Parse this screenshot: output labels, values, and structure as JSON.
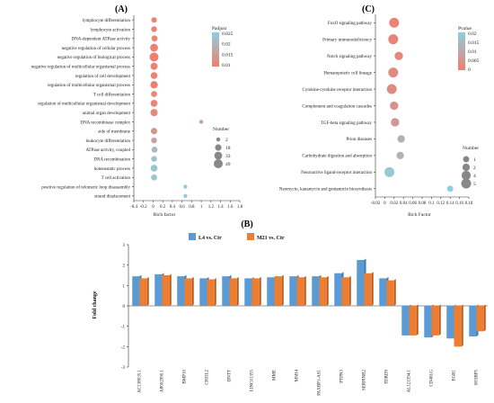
{
  "chart_data": [
    {
      "panel": "(A)",
      "type": "scatter",
      "xlabel": "Rich factor",
      "xticks": [
        "-0.4",
        "-0.2",
        "0",
        "0.2",
        "0.4",
        "0.6",
        "0.8",
        "1",
        "1.2",
        "1.4",
        "1.6",
        "1.8"
      ],
      "xlim": [
        -0.4,
        1.8
      ],
      "color_legend": {
        "title": "Padjust",
        "ticks": [
          "0.025",
          "0.02",
          "0.015",
          "0.01"
        ],
        "high": "#8ecfe0",
        "low": "#ef7f6f",
        "range": [
          0.005,
          0.028
        ]
      },
      "size_legend": {
        "title": "Number",
        "values": [
          "2",
          "18",
          "33",
          "49"
        ]
      },
      "terms": [
        "lymphocyte differentiation",
        "lymphocyte activation",
        "DNA-dependent ATPase activity",
        "negative regulation of cellular process",
        "negative regulation of biological process",
        "negative regulation of multicellular organismal process",
        "regulation of cell development",
        "regulation of multicellular organismal process",
        "T cell differentiation",
        "regulation of multicellular organismal development",
        "animal organ development",
        "DNA recombinase complex",
        "side of membrane",
        "leukocyte differentiation",
        "ATPase activity, coupled",
        "DNA recombination",
        "homeostatic process",
        "T cell activation",
        "positive regulation of telomeric loop disassembly",
        "strand displacement"
      ],
      "rich": [
        0.02,
        0.02,
        0.03,
        0.02,
        0.02,
        0.02,
        0.02,
        0.02,
        0.02,
        0.02,
        0.02,
        1.0,
        0.02,
        0.02,
        0.03,
        0.02,
        0.02,
        0.02,
        0.67,
        0.67
      ],
      "number": [
        10,
        12,
        14,
        33,
        49,
        25,
        20,
        28,
        14,
        22,
        26,
        2,
        18,
        12,
        14,
        12,
        22,
        14,
        2,
        2
      ],
      "padj": [
        0.006,
        0.006,
        0.007,
        0.005,
        0.005,
        0.006,
        0.006,
        0.006,
        0.007,
        0.007,
        0.008,
        0.014,
        0.012,
        0.015,
        0.022,
        0.024,
        0.025,
        0.025,
        0.027,
        0.027
      ]
    },
    {
      "panel": "(C)",
      "type": "scatter",
      "xlabel": "Rich Factor",
      "xticks": [
        "-0.02",
        "0",
        "0.02",
        "0.04",
        "0.06",
        "0.08",
        "0.1",
        "0.12",
        "0.14",
        "0.16",
        "0.18"
      ],
      "xlim": [
        -0.02,
        0.18
      ],
      "color_legend": {
        "title": "Pvalue",
        "ticks": [
          "0.02",
          "0.015",
          "0.01",
          "0.005",
          "0"
        ],
        "high": "#8ecfe0",
        "low": "#ef7f6f",
        "range": [
          0,
          0.02
        ]
      },
      "size_legend": {
        "title": "Number",
        "values": [
          "1",
          "2",
          "4",
          "5"
        ]
      },
      "terms": [
        "FoxO signaling pathway",
        "Primary immunodeficiency",
        "Notch signaling pathway",
        "Hematopoietic cell lineage",
        "Cytokine-cytokine receptor interaction",
        "Complement and coagulation cascades",
        "TGF-beta signaling pathway",
        "Prion diseases",
        "Carbohydrate digestion and absorption",
        "Neuroactive ligand-receptor interaction",
        "Neomycin, kanamycin and gentamicin biosynthesis"
      ],
      "rich": [
        0.02,
        0.018,
        0.03,
        0.018,
        0.015,
        0.02,
        0.022,
        0.035,
        0.033,
        0.01,
        0.14
      ],
      "number": [
        5,
        5,
        3,
        5,
        5,
        3,
        3,
        2,
        2,
        5,
        1
      ],
      "pval": [
        0.001,
        0.001,
        0.002,
        0.003,
        0.003,
        0.005,
        0.006,
        0.012,
        0.013,
        0.018,
        0.02
      ]
    },
    {
      "panel": "(B)",
      "type": "bar",
      "ylabel": "Fold change",
      "ylim": [
        -3,
        3
      ],
      "yticks": [
        "3",
        "2",
        "1",
        "0",
        "-1",
        "-2",
        "-3"
      ],
      "categories": [
        "AC138035.1",
        "AP002990.1",
        "BMP10",
        "CHI3L2",
        "DNTT",
        "LINC01355",
        "MME",
        "MSH4",
        "PAXBP1-AS1",
        "PTPN3",
        "SERPINB2",
        "TDRD9",
        "AL121594.1",
        "CD40LG",
        "EGR1",
        "SH3BP5"
      ],
      "series": [
        {
          "name": "L4 vs. Ctr",
          "color": "#5b9bd5",
          "values": [
            1.45,
            1.55,
            1.45,
            1.35,
            1.45,
            1.35,
            1.4,
            1.45,
            1.45,
            1.6,
            2.25,
            1.35,
            -1.45,
            -1.55,
            -1.6,
            -1.5
          ]
        },
        {
          "name": "M21 vs. Ctr",
          "color": "#ed7d31",
          "values": [
            1.35,
            1.5,
            1.35,
            1.3,
            1.35,
            1.35,
            1.45,
            1.4,
            1.4,
            1.4,
            1.6,
            1.25,
            -1.45,
            -1.45,
            -2.0,
            -1.25
          ]
        }
      ]
    }
  ]
}
